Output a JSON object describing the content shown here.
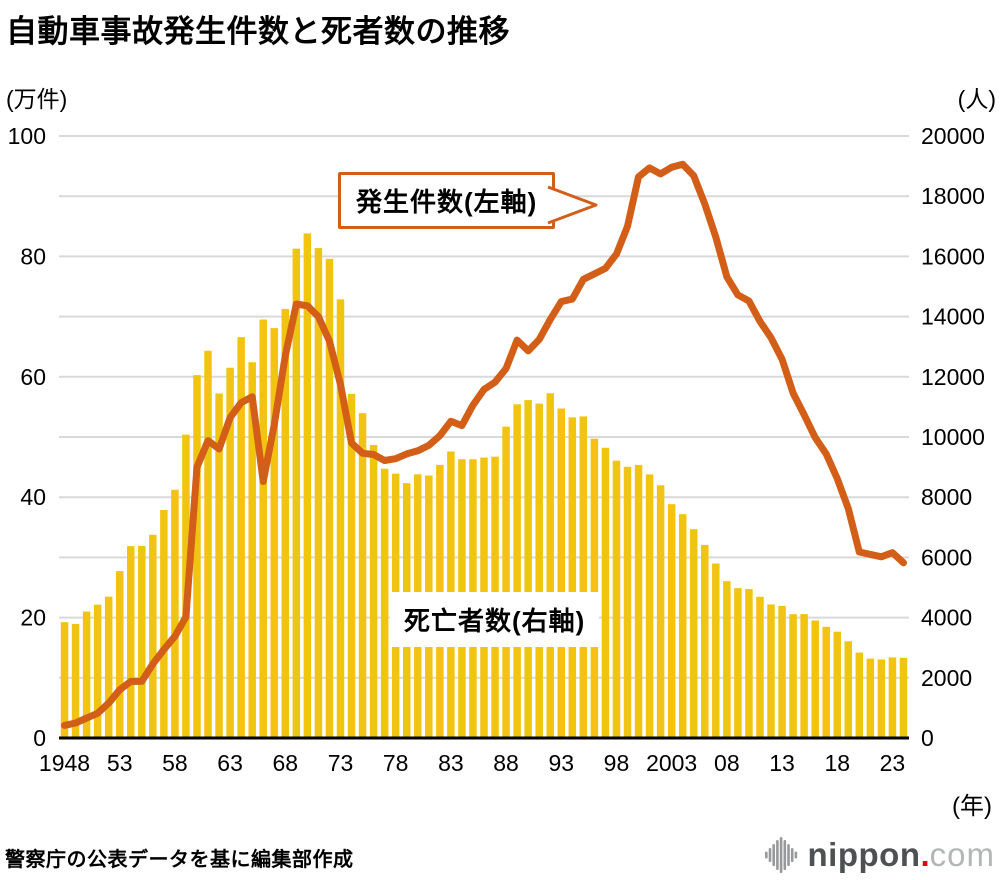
{
  "title": "自動車事故発生件数と死者数の推移",
  "left_axis": {
    "unit": "(万件)",
    "ticks": [
      0,
      20,
      40,
      60,
      80,
      100
    ],
    "max": 100,
    "grid_step": 10
  },
  "right_axis": {
    "unit": "(人)",
    "ticks": [
      0,
      2000,
      4000,
      6000,
      8000,
      10000,
      12000,
      14000,
      16000,
      18000,
      20000
    ],
    "max": 20000
  },
  "x_axis": {
    "unit": "(年)",
    "tick_labels": [
      {
        "index": 0,
        "label": "1948"
      },
      {
        "index": 5,
        "label": "53"
      },
      {
        "index": 10,
        "label": "58"
      },
      {
        "index": 15,
        "label": "63"
      },
      {
        "index": 20,
        "label": "68"
      },
      {
        "index": 25,
        "label": "73"
      },
      {
        "index": 30,
        "label": "78"
      },
      {
        "index": 35,
        "label": "83"
      },
      {
        "index": 40,
        "label": "88"
      },
      {
        "index": 45,
        "label": "93"
      },
      {
        "index": 50,
        "label": "98"
      },
      {
        "index": 55,
        "label": "2003"
      },
      {
        "index": 60,
        "label": "08"
      },
      {
        "index": 65,
        "label": "13"
      },
      {
        "index": 70,
        "label": "18"
      },
      {
        "index": 75,
        "label": "23"
      }
    ]
  },
  "annotations": {
    "line_label": "発生件数(左軸)",
    "bar_label": "死亡者数(右軸)"
  },
  "footer": {
    "source": "警察庁の公表データを基に編集部作成"
  },
  "logo": {
    "brand": "nippon",
    "dot": ".",
    "tld": "com"
  },
  "colors": {
    "bar": "#F2C412",
    "line": "#D35E17",
    "grid": "#D9D9D9",
    "baseline": "#000000",
    "text": "#000000",
    "logo_mark": "#97999A"
  },
  "chart_data": {
    "type": "bar+line",
    "title": "自動車事故発生件数と死者数の推移",
    "grid": "on",
    "x": [
      1948,
      1949,
      1950,
      1951,
      1952,
      1953,
      1954,
      1955,
      1956,
      1957,
      1958,
      1959,
      1960,
      1961,
      1962,
      1963,
      1964,
      1965,
      1966,
      1967,
      1968,
      1969,
      1970,
      1971,
      1972,
      1973,
      1974,
      1975,
      1976,
      1977,
      1978,
      1979,
      1980,
      1981,
      1982,
      1983,
      1984,
      1985,
      1986,
      1987,
      1988,
      1989,
      1990,
      1991,
      1992,
      1993,
      1994,
      1995,
      1996,
      1997,
      1998,
      1999,
      2000,
      2001,
      2002,
      2003,
      2004,
      2005,
      2006,
      2007,
      2008,
      2009,
      2010,
      2011,
      2012,
      2013,
      2014,
      2015,
      2016,
      2017,
      2018,
      2019,
      2020,
      2021,
      2022,
      2023,
      2024
    ],
    "left_ylim": [
      0,
      100
    ],
    "right_ylim": [
      0,
      20000
    ],
    "series": [
      {
        "name": "発生件数(左軸)",
        "type": "line",
        "axis": "left",
        "unit": "万件",
        "values": [
          2.1,
          2.5,
          3.3,
          4.1,
          5.8,
          8.0,
          9.4,
          9.4,
          12.3,
          14.7,
          16.9,
          20.1,
          45.0,
          49.4,
          48.0,
          53.2,
          55.7,
          56.7,
          42.6,
          52.1,
          63.5,
          72.1,
          71.8,
          70.0,
          65.9,
          58.7,
          49.0,
          47.3,
          47.1,
          46.1,
          46.4,
          47.2,
          47.7,
          48.6,
          50.2,
          52.6,
          51.9,
          55.3,
          57.9,
          59.1,
          61.4,
          66.1,
          64.3,
          66.2,
          69.5,
          72.5,
          72.9,
          76.2,
          77.1,
          78.0,
          80.4,
          85.0,
          93.2,
          94.7,
          93.7,
          94.8,
          95.3,
          93.4,
          88.7,
          83.2,
          76.6,
          73.6,
          72.6,
          69.2,
          66.5,
          62.9,
          57.3,
          53.7,
          49.9,
          47.2,
          43.1,
          38.1,
          30.9,
          30.5,
          30.1,
          30.8,
          29.1
        ]
      },
      {
        "name": "死亡者数(右軸)",
        "type": "bar",
        "axis": "right",
        "unit": "人",
        "values": [
          3848,
          3790,
          4202,
          4429,
          4696,
          5544,
          6374,
          6379,
          6751,
          7575,
          8248,
          10079,
          12055,
          12865,
          11445,
          12301,
          13318,
          12484,
          13904,
          13618,
          14256,
          16257,
          16765,
          16278,
          15918,
          14574,
          11432,
          10792,
          9734,
          8945,
          8783,
          8466,
          8760,
          8719,
          9073,
          9520,
          9262,
          9261,
          9317,
          9347,
          10344,
          11086,
          11227,
          11109,
          11452,
          10945,
          10653,
          10684,
          9943,
          9642,
          9214,
          9012,
          9073,
          8757,
          8396,
          7768,
          7436,
          6937,
          6415,
          5796,
          5209,
          4979,
          4948,
          4691,
          4438,
          4388,
          4113,
          4117,
          3904,
          3694,
          3532,
          3215,
          2839,
          2636,
          2610,
          2678,
          2663
        ]
      }
    ]
  }
}
